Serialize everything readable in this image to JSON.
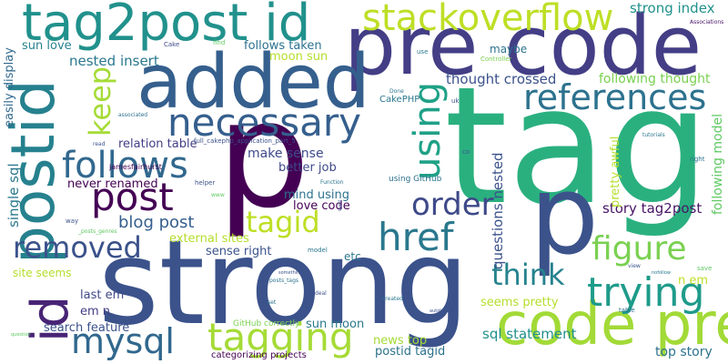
{
  "words": [
    {
      "text": "tag",
      "color": "#2ab07f"
    },
    {
      "text": "p",
      "color": "#440154"
    },
    {
      "text": "strong",
      "color": "#3b528b"
    },
    {
      "text": "pre code",
      "color": "#433e85"
    },
    {
      "text": "added",
      "color": "#355f8d"
    },
    {
      "text": "tag2post id",
      "color": "#21918c"
    },
    {
      "text": "p",
      "color": "#3b528b"
    },
    {
      "text": "postid",
      "color": "#26818e"
    },
    {
      "text": "code pre",
      "color": "#a2da37"
    },
    {
      "text": "id",
      "color": "#482475"
    },
    {
      "text": "stackoverflow",
      "color": "#bddf26"
    },
    {
      "text": "necessary",
      "color": "#355f8d"
    },
    {
      "text": "references",
      "color": "#2c728e"
    },
    {
      "text": "follows",
      "color": "#31688e"
    },
    {
      "text": "post",
      "color": "#440154"
    },
    {
      "text": "using",
      "color": "#1fa187"
    },
    {
      "text": "href",
      "color": "#2a788e"
    },
    {
      "text": "tagging",
      "color": "#a5db36"
    },
    {
      "text": "trying",
      "color": "#1e9b8a"
    },
    {
      "text": "figure",
      "color": "#7ad151"
    },
    {
      "text": "order",
      "color": "#3e4989"
    },
    {
      "text": "tagid",
      "color": "#bddf26"
    },
    {
      "text": "removed",
      "color": "#3b528b"
    },
    {
      "text": "think",
      "color": "#26828e"
    },
    {
      "text": "mysql",
      "color": "#31688e"
    },
    {
      "text": "keep",
      "color": "#a5db36"
    },
    {
      "text": "blog post",
      "color": "#355f8d"
    },
    {
      "text": "strong index",
      "color": "#21918c"
    },
    {
      "text": "story tag2post",
      "color": "#481467"
    },
    {
      "text": "following model",
      "color": "#5ec962"
    },
    {
      "text": "following thought",
      "color": "#7ad151"
    },
    {
      "text": "questions nested",
      "color": "#3b528b"
    },
    {
      "text": "single sql",
      "color": "#2a788e"
    },
    {
      "text": "sql statement",
      "color": "#21918c"
    },
    {
      "text": "top story",
      "color": "#2c728e"
    },
    {
      "text": "nested insert",
      "color": "#2a788e"
    },
    {
      "text": "easily display",
      "color": "#31688e"
    },
    {
      "text": "thought crossed",
      "color": "#3b528b"
    },
    {
      "text": "follows taken",
      "color": "#2c728e"
    },
    {
      "text": "moon sun",
      "color": "#b5de2b"
    },
    {
      "text": "relation table",
      "color": "#433e85"
    },
    {
      "text": "make sense",
      "color": "#3e4989"
    },
    {
      "text": "better job",
      "color": "#3e4989"
    },
    {
      "text": "never renamed",
      "color": "#440154"
    },
    {
      "text": "mind using",
      "color": "#2c728e"
    },
    {
      "text": "love code",
      "color": "#440154"
    },
    {
      "text": "sun love",
      "color": "#26828e"
    },
    {
      "text": "external sites",
      "color": "#b5de2b"
    },
    {
      "text": "sense right",
      "color": "#3b528b"
    },
    {
      "text": "site seems",
      "color": "#b5de2b"
    },
    {
      "text": "last em",
      "color": "#3e4989"
    },
    {
      "text": "em n",
      "color": "#433e85"
    },
    {
      "text": "search feature",
      "color": "#3b528b"
    },
    {
      "text": "sun moon",
      "color": "#2a788e"
    },
    {
      "text": "news top",
      "color": "#a5db36"
    },
    {
      "text": "postid tagid",
      "color": "#2c728e"
    },
    {
      "text": "seems pretty",
      "color": "#b5de2b"
    },
    {
      "text": "n em",
      "color": "#bddf26"
    },
    {
      "text": "pretty awful",
      "color": "#b5de2b"
    },
    {
      "text": "maybe",
      "color": "#2c728e"
    },
    {
      "text": "etc",
      "color": "#2a788e"
    },
    {
      "text": "categorizing projects",
      "color": "#440154"
    },
    {
      "text": "GitHub correctly",
      "color": "#7ad151"
    },
    {
      "text": "using GitHub",
      "color": "#2c728e"
    },
    {
      "text": "CakePHP",
      "color": "#2a788e"
    },
    {
      "text": "full_cakephp_application_part_5",
      "color": "#3b528b"
    },
    {
      "text": "jamesfairhurst",
      "color": "#440154"
    },
    {
      "text": "Cake",
      "color": "#3e4989"
    },
    {
      "text": "find",
      "color": "#5ec962"
    },
    {
      "text": "Controller",
      "color": "#7ad151"
    },
    {
      "text": "Associations",
      "color": "#481467"
    },
    {
      "text": "use",
      "color": "#2a788e"
    },
    {
      "text": "lot",
      "color": "#3b528b"
    },
    {
      "text": "Done",
      "color": "#2a788e"
    },
    {
      "text": "uk",
      "color": "#3b528b"
    },
    {
      "text": "associated",
      "color": "#2c728e"
    },
    {
      "text": "tutorials",
      "color": "#2a788e"
    },
    {
      "text": "co",
      "color": "#3b528b"
    },
    {
      "text": "right",
      "color": "#2c728e"
    },
    {
      "text": "read",
      "color": "#3b528b"
    },
    {
      "text": "helper",
      "color": "#3b528b"
    },
    {
      "text": "Function",
      "color": "#2c728e"
    },
    {
      "text": "www",
      "color": "#5ec962"
    },
    {
      "text": "way",
      "color": "#3b528b"
    },
    {
      "text": "_posts_genres",
      "color": "#5ec962"
    },
    {
      "text": "model",
      "color": "#2a788e"
    },
    {
      "text": "something",
      "color": "#3b528b"
    },
    {
      "text": "posts_tags",
      "color": "#2c728e"
    },
    {
      "text": "deal",
      "color": "#3b528b"
    },
    {
      "text": "created",
      "color": "#2a788e"
    },
    {
      "text": "autologically",
      "color": "#3b528b"
    },
    {
      "text": "table",
      "color": "#2c728e"
    },
    {
      "text": "view",
      "color": "#3b528b"
    },
    {
      "text": "nofollow",
      "color": "#2a788e"
    },
    {
      "text": "save",
      "color": "#5ec962"
    },
    {
      "text": "set",
      "color": "#2c728e"
    },
    {
      "text": "question",
      "color": "#5ec962"
    },
    {
      "text": "want",
      "color": "#3b528b"
    }
  ]
}
